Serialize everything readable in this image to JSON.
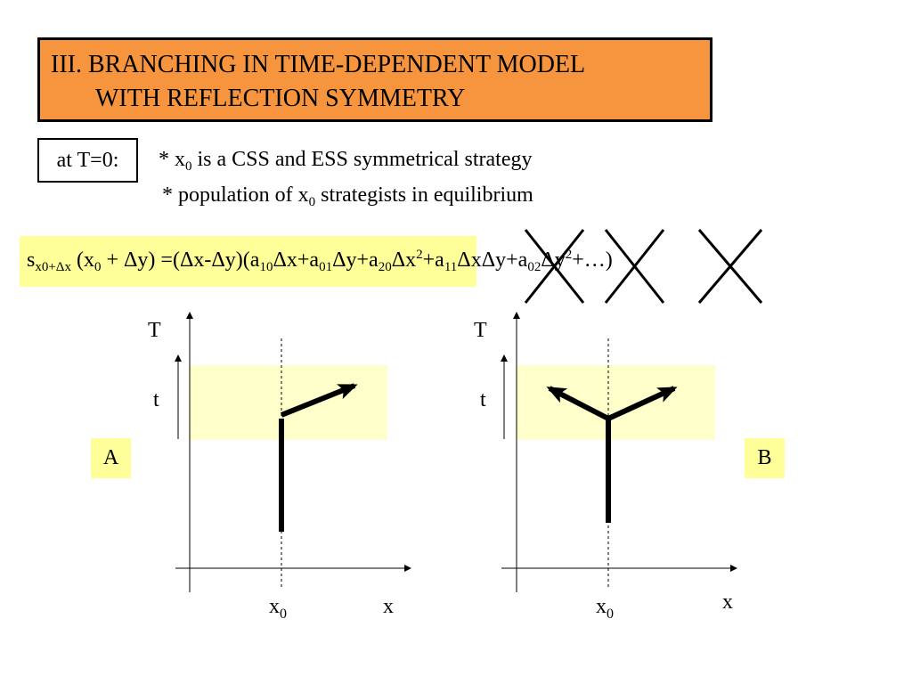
{
  "title": [
    "III. BRANCHING IN TIME-DEPENDENT MODEL",
    "WITH REFLECTION SYMMETRY"
  ],
  "condition_label": "at T=0:",
  "bullets": [
    [
      {
        "text": "* x",
        "pos": "base"
      },
      {
        "text": "0",
        "pos": "sub"
      },
      {
        "text": " is a CSS and ESS symmetrical strategy",
        "pos": "base"
      }
    ],
    [
      {
        "text": "* population of x",
        "pos": "base"
      },
      {
        "text": "0",
        "pos": "sub"
      },
      {
        "text": " strategists in equilibrium",
        "pos": "base"
      }
    ]
  ],
  "formula": [
    {
      "text": "s",
      "pos": "base"
    },
    {
      "text": "x0+Δx",
      "pos": "sub"
    },
    {
      "text": " (x",
      "pos": "base"
    },
    {
      "text": "0",
      "pos": "sub"
    },
    {
      "text": " + Δy) =(Δx-Δy)(a",
      "pos": "base"
    },
    {
      "text": "10",
      "pos": "sub"
    },
    {
      "text": "Δx+a",
      "pos": "base"
    },
    {
      "text": "01",
      "pos": "sub"
    },
    {
      "text": "Δy+a",
      "pos": "base"
    },
    {
      "text": "20",
      "pos": "sub"
    },
    {
      "text": "Δx",
      "pos": "base"
    },
    {
      "text": "2",
      "pos": "sup"
    },
    {
      "text": "+a",
      "pos": "base"
    },
    {
      "text": "11",
      "pos": "sub"
    },
    {
      "text": "ΔxΔy+a",
      "pos": "base"
    },
    {
      "text": "02",
      "pos": "sub"
    },
    {
      "text": "Δy",
      "pos": "base"
    },
    {
      "text": "2",
      "pos": "sup"
    },
    {
      "text": "+…)",
      "pos": "base"
    }
  ],
  "panels": [
    {
      "label": "A",
      "axis_y": "T",
      "axis_x": "x",
      "time_label": "t",
      "x_marker": [
        "x",
        "0"
      ]
    },
    {
      "label": "B",
      "axis_y": "T",
      "axis_x": "x",
      "time_label": "t",
      "x_marker": [
        "x",
        "0"
      ]
    }
  ]
}
